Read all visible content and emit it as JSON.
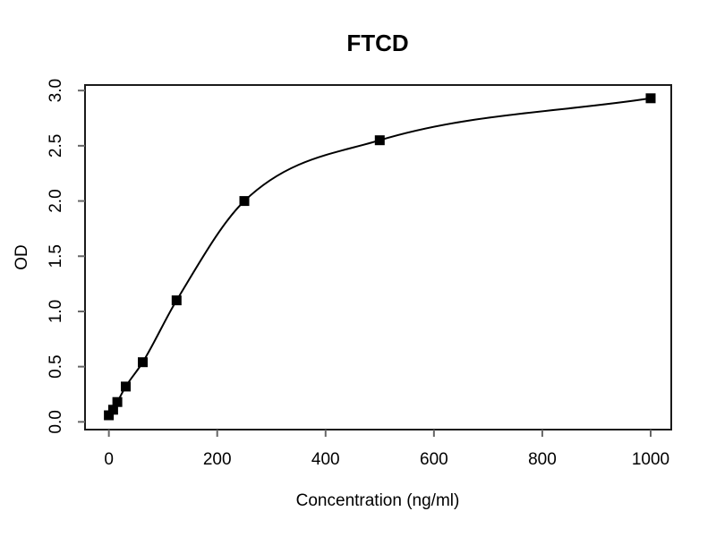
{
  "chart_data": {
    "type": "scatter",
    "title": "FTCD",
    "xlabel": "Concentration (ng/ml)",
    "ylabel": "OD",
    "legend": "none",
    "grid": false,
    "marker": "filled-square",
    "curve_style": "smooth-fit-line",
    "x_ticks": [
      "0",
      "200",
      "400",
      "600",
      "800",
      "1000"
    ],
    "x_tick_values": [
      0,
      200,
      400,
      600,
      800,
      1000
    ],
    "y_ticks": [
      "0.0",
      "0.5",
      "1.0",
      "1.5",
      "2.0",
      "2.5",
      "3.0"
    ],
    "y_tick_values": [
      0,
      0.5,
      1,
      1.5,
      2,
      2.5,
      3
    ],
    "xlim": [
      -44,
      1038
    ],
    "ylim": [
      -0.07,
      3.05
    ],
    "points": [
      {
        "x": 0,
        "y": 0.06
      },
      {
        "x": 7.8,
        "y": 0.11
      },
      {
        "x": 15.6,
        "y": 0.18
      },
      {
        "x": 31.2,
        "y": 0.32
      },
      {
        "x": 62.5,
        "y": 0.54
      },
      {
        "x": 125,
        "y": 1.1
      },
      {
        "x": 250,
        "y": 2.0
      },
      {
        "x": 500,
        "y": 2.55
      },
      {
        "x": 1000,
        "y": 2.93
      }
    ],
    "colors": {
      "background": "#ffffff",
      "text": "#000000",
      "point": "#000000",
      "curve": "#000000",
      "box": "#1a1a1a",
      "tick": "#666666"
    }
  }
}
